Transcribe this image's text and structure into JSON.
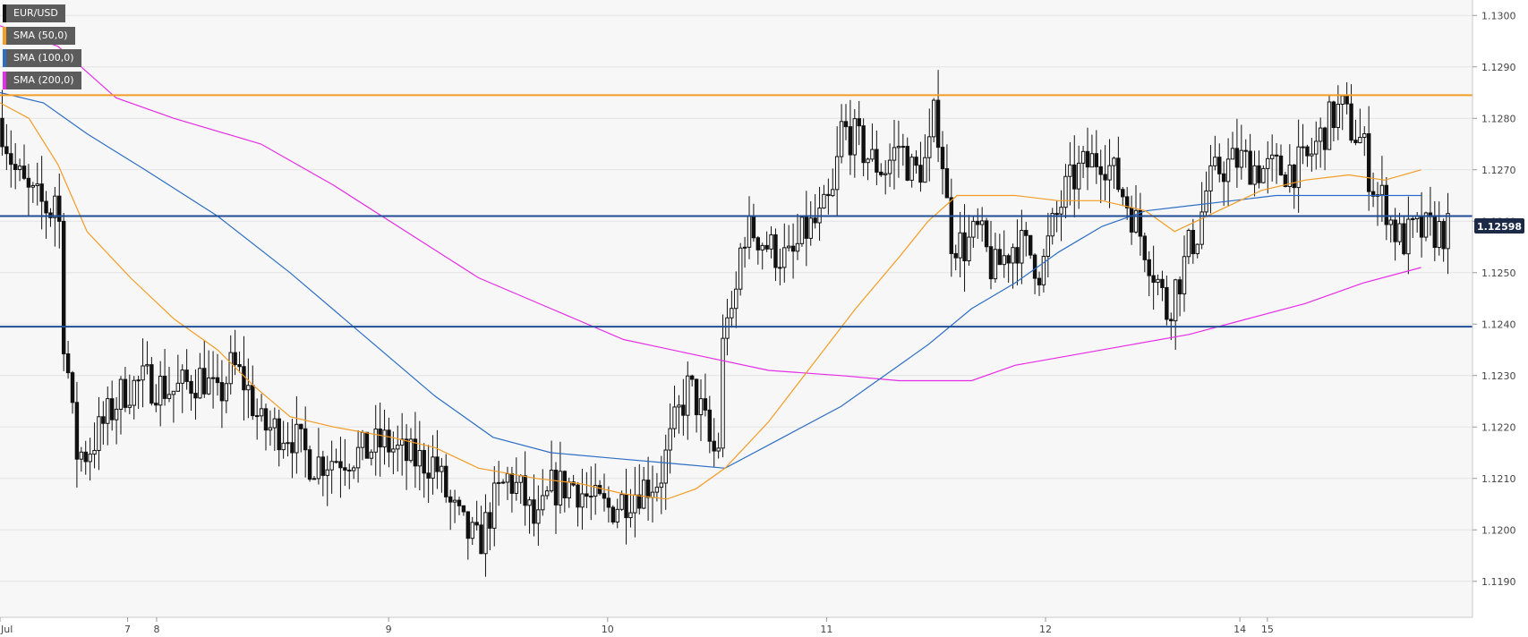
{
  "legend": [
    {
      "label": "EUR/USD",
      "color": "#111111"
    },
    {
      "label": "SMA (50,0)",
      "color": "#f39c26"
    },
    {
      "label": "SMA (100,0)",
      "color": "#2d6ec5"
    },
    {
      "label": "SMA (200,0)",
      "color": "#e62ce6"
    }
  ],
  "chart_data": {
    "type": "candlestick",
    "symbol": "EUR/USD",
    "ylim": [
      1.1183,
      1.1303
    ],
    "y_ticks": [
      "1.1190",
      "1.1200",
      "1.1210",
      "1.1220",
      "1.1230",
      "1.1240",
      "1.1250",
      "1.1260",
      "1.1270",
      "1.1280",
      "1.1290",
      "1.1300"
    ],
    "x_ticks": [
      {
        "label": "Jul",
        "t": 0
      },
      {
        "label": "7",
        "t": 0.088
      },
      {
        "label": "8",
        "t": 0.108
      },
      {
        "label": "9",
        "t": 0.268
      },
      {
        "label": "10",
        "t": 0.419
      },
      {
        "label": "11",
        "t": 0.57
      },
      {
        "label": "12",
        "t": 0.721
      },
      {
        "label": "14",
        "t": 0.855
      },
      {
        "label": "15",
        "t": 0.874
      }
    ],
    "last_price": "1.12598",
    "horizontal_levels": [
      {
        "value": 1.12845,
        "color": "#f39c26"
      },
      {
        "value": 1.1261,
        "color": "#1f4e96"
      },
      {
        "value": 1.12395,
        "color": "#1f4e96"
      }
    ],
    "price_path": [
      [
        0.0,
        1.128
      ],
      [
        0.01,
        1.127
      ],
      [
        0.02,
        1.1265
      ],
      [
        0.035,
        1.1262
      ],
      [
        0.04,
        1.1268
      ],
      [
        0.043,
        1.124
      ],
      [
        0.048,
        1.1228
      ],
      [
        0.052,
        1.1215
      ],
      [
        0.06,
        1.1215
      ],
      [
        0.07,
        1.122
      ],
      [
        0.085,
        1.1227
      ],
      [
        0.1,
        1.1229
      ],
      [
        0.12,
        1.1227
      ],
      [
        0.14,
        1.123
      ],
      [
        0.15,
        1.1225
      ],
      [
        0.16,
        1.1232
      ],
      [
        0.17,
        1.1228
      ],
      [
        0.18,
        1.122
      ],
      [
        0.2,
        1.1219
      ],
      [
        0.215,
        1.1213
      ],
      [
        0.23,
        1.1214
      ],
      [
        0.25,
        1.1215
      ],
      [
        0.265,
        1.1217
      ],
      [
        0.28,
        1.1214
      ],
      [
        0.3,
        1.1213
      ],
      [
        0.31,
        1.1205
      ],
      [
        0.32,
        1.12
      ],
      [
        0.33,
        1.1197
      ],
      [
        0.34,
        1.1205
      ],
      [
        0.35,
        1.121
      ],
      [
        0.36,
        1.1207
      ],
      [
        0.37,
        1.12
      ],
      [
        0.38,
        1.1208
      ],
      [
        0.395,
        1.1209
      ],
      [
        0.41,
        1.1205
      ],
      [
        0.42,
        1.1204
      ],
      [
        0.44,
        1.1208
      ],
      [
        0.455,
        1.121
      ],
      [
        0.465,
        1.122
      ],
      [
        0.475,
        1.1228
      ],
      [
        0.485,
        1.1222
      ],
      [
        0.49,
        1.1216
      ],
      [
        0.495,
        1.1214
      ],
      [
        0.5,
        1.1245
      ],
      [
        0.505,
        1.1239
      ],
      [
        0.512,
        1.1258
      ],
      [
        0.52,
        1.1258
      ],
      [
        0.53,
        1.1255
      ],
      [
        0.545,
        1.1252
      ],
      [
        0.555,
        1.1258
      ],
      [
        0.565,
        1.126
      ],
      [
        0.575,
        1.1265
      ],
      [
        0.58,
        1.1278
      ],
      [
        0.59,
        1.1276
      ],
      [
        0.6,
        1.1272
      ],
      [
        0.61,
        1.127
      ],
      [
        0.62,
        1.1275
      ],
      [
        0.63,
        1.1269
      ],
      [
        0.64,
        1.1272
      ],
      [
        0.645,
        1.1282
      ],
      [
        0.65,
        1.1272
      ],
      [
        0.655,
        1.1257
      ],
      [
        0.665,
        1.1255
      ],
      [
        0.675,
        1.1258
      ],
      [
        0.685,
        1.125
      ],
      [
        0.7,
        1.1256
      ],
      [
        0.71,
        1.1254
      ],
      [
        0.718,
        1.125
      ],
      [
        0.725,
        1.1258
      ],
      [
        0.735,
        1.1266
      ],
      [
        0.745,
        1.127
      ],
      [
        0.76,
        1.1273
      ],
      [
        0.77,
        1.1268
      ],
      [
        0.78,
        1.1262
      ],
      [
        0.79,
        1.1255
      ],
      [
        0.8,
        1.1247
      ],
      [
        0.805,
        1.1242
      ],
      [
        0.81,
        1.1247
      ],
      [
        0.815,
        1.125
      ],
      [
        0.82,
        1.1255
      ],
      [
        0.826,
        1.1258
      ],
      [
        0.832,
        1.1266
      ],
      [
        0.84,
        1.127
      ],
      [
        0.855,
        1.1272
      ],
      [
        0.87,
        1.127
      ],
      [
        0.885,
        1.127
      ],
      [
        0.9,
        1.1271
      ],
      [
        0.91,
        1.1276
      ],
      [
        0.918,
        1.128
      ],
      [
        0.925,
        1.1282
      ],
      [
        0.932,
        1.1278
      ],
      [
        0.94,
        1.1275
      ],
      [
        0.945,
        1.1268
      ],
      [
        0.95,
        1.1265
      ],
      [
        0.955,
        1.1264
      ],
      [
        0.96,
        1.1259
      ],
      [
        0.967,
        1.1256
      ],
      [
        0.975,
        1.1258
      ]
    ],
    "sma50": [
      [
        0.0,
        1.1283
      ],
      [
        0.02,
        1.128
      ],
      [
        0.04,
        1.1271
      ],
      [
        0.06,
        1.1258
      ],
      [
        0.09,
        1.1249
      ],
      [
        0.12,
        1.1241
      ],
      [
        0.15,
        1.1235
      ],
      [
        0.175,
        1.1228
      ],
      [
        0.2,
        1.1222
      ],
      [
        0.23,
        1.122
      ],
      [
        0.27,
        1.1218
      ],
      [
        0.3,
        1.1216
      ],
      [
        0.33,
        1.1212
      ],
      [
        0.37,
        1.121
      ],
      [
        0.4,
        1.1209
      ],
      [
        0.43,
        1.1207
      ],
      [
        0.46,
        1.1206
      ],
      [
        0.48,
        1.1208
      ],
      [
        0.5,
        1.1212
      ],
      [
        0.53,
        1.1221
      ],
      [
        0.56,
        1.1232
      ],
      [
        0.59,
        1.1243
      ],
      [
        0.62,
        1.1253
      ],
      [
        0.64,
        1.126
      ],
      [
        0.66,
        1.1265
      ],
      [
        0.7,
        1.1265
      ],
      [
        0.73,
        1.1264
      ],
      [
        0.76,
        1.1264
      ],
      [
        0.79,
        1.1262
      ],
      [
        0.81,
        1.1258
      ],
      [
        0.84,
        1.1262
      ],
      [
        0.87,
        1.1266
      ],
      [
        0.9,
        1.1268
      ],
      [
        0.93,
        1.1269
      ],
      [
        0.955,
        1.1268
      ],
      [
        0.98,
        1.127
      ]
    ],
    "sma100": [
      [
        0.0,
        1.1285
      ],
      [
        0.03,
        1.1283
      ],
      [
        0.06,
        1.1277
      ],
      [
        0.1,
        1.127
      ],
      [
        0.15,
        1.1261
      ],
      [
        0.2,
        1.125
      ],
      [
        0.25,
        1.1238
      ],
      [
        0.3,
        1.1226
      ],
      [
        0.34,
        1.1218
      ],
      [
        0.38,
        1.1215
      ],
      [
        0.42,
        1.1214
      ],
      [
        0.46,
        1.1213
      ],
      [
        0.5,
        1.1212
      ],
      [
        0.54,
        1.1218
      ],
      [
        0.58,
        1.1224
      ],
      [
        0.61,
        1.123
      ],
      [
        0.64,
        1.1236
      ],
      [
        0.67,
        1.1243
      ],
      [
        0.7,
        1.1248
      ],
      [
        0.73,
        1.1254
      ],
      [
        0.76,
        1.1259
      ],
      [
        0.79,
        1.1262
      ],
      [
        0.82,
        1.1263
      ],
      [
        0.85,
        1.1264
      ],
      [
        0.88,
        1.1265
      ],
      [
        0.91,
        1.1265
      ],
      [
        0.94,
        1.1265
      ],
      [
        0.98,
        1.1265
      ]
    ],
    "sma200": [
      [
        0.0,
        1.1298
      ],
      [
        0.04,
        1.1294
      ],
      [
        0.08,
        1.1284
      ],
      [
        0.12,
        1.128
      ],
      [
        0.18,
        1.1275
      ],
      [
        0.23,
        1.1267
      ],
      [
        0.28,
        1.1258
      ],
      [
        0.33,
        1.1249
      ],
      [
        0.38,
        1.1243
      ],
      [
        0.43,
        1.1237
      ],
      [
        0.48,
        1.1234
      ],
      [
        0.53,
        1.1231
      ],
      [
        0.58,
        1.123
      ],
      [
        0.62,
        1.1229
      ],
      [
        0.67,
        1.1229
      ],
      [
        0.7,
        1.1232
      ],
      [
        0.74,
        1.1234
      ],
      [
        0.78,
        1.1236
      ],
      [
        0.82,
        1.1238
      ],
      [
        0.86,
        1.1241
      ],
      [
        0.9,
        1.1244
      ],
      [
        0.94,
        1.1248
      ],
      [
        0.98,
        1.1251
      ]
    ]
  }
}
